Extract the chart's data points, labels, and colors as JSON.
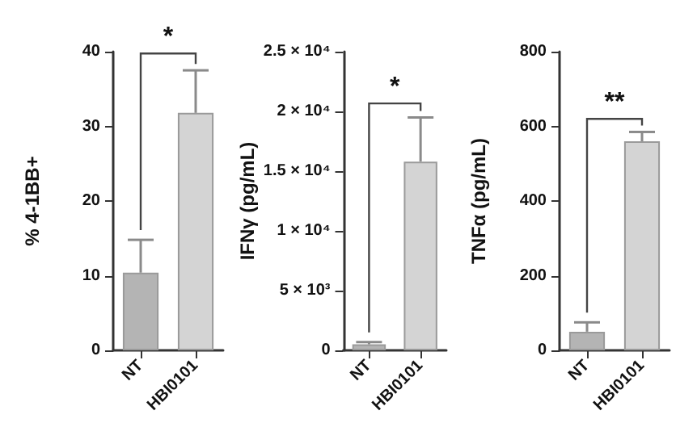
{
  "chart_data": [
    {
      "type": "bar",
      "categories": [
        "NT",
        "HBI0101"
      ],
      "ylabel": "% 4-1BB+",
      "ylim": [
        0,
        40
      ],
      "yticks": [
        0,
        10,
        20,
        30,
        40
      ],
      "series": [
        {
          "colors": [
            "#b4b4b4",
            "#d4d4d4"
          ],
          "values": [
            10.4,
            31.8
          ],
          "errors": [
            [
              10.4,
              14.8
            ],
            [
              31.8,
              37.5
            ]
          ]
        }
      ],
      "annotations": [
        "*"
      ]
    },
    {
      "type": "bar",
      "categories": [
        "NT",
        "HBI0101"
      ],
      "ylabel": "IFNγ (pg/mL)",
      "ylim": [
        0,
        25000
      ],
      "yticks": [
        0,
        {
          "value": 5000,
          "label": "5 × 10³"
        },
        {
          "value": 10000,
          "label": "1 × 10⁴"
        },
        {
          "value": 15000,
          "label": "1.5 × 10⁴"
        },
        {
          "value": 20000,
          "label": "2 × 10⁴"
        },
        {
          "value": 25000,
          "label": "2.5 × 10⁴"
        }
      ],
      "series": [
        {
          "colors": [
            "#b4b4b4",
            "#d4d4d4"
          ],
          "values": [
            500,
            15800
          ],
          "errors": [
            [
              500,
              700
            ],
            [
              15800,
              19500
            ]
          ]
        }
      ],
      "annotations": [
        "*"
      ]
    },
    {
      "type": "bar",
      "categories": [
        "NT",
        "HBI0101"
      ],
      "ylabel": "TNFα (pg/mL)",
      "ylim": [
        0,
        800
      ],
      "yticks": [
        0,
        200,
        400,
        600,
        800
      ],
      "series": [
        {
          "colors": [
            "#b4b4b4",
            "#d4d4d4"
          ],
          "values": [
            50,
            560
          ],
          "errors": [
            [
              50,
              75
            ],
            [
              560,
              585
            ]
          ]
        }
      ],
      "annotations": [
        "**"
      ]
    }
  ]
}
